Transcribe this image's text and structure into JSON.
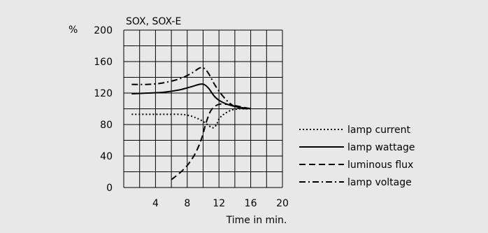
{
  "chart_data": {
    "type": "line",
    "title": "SOX, SOX-E",
    "ylabel": "%",
    "xlabel": "Time in min.",
    "xlim": [
      0,
      20
    ],
    "ylim": [
      0,
      200
    ],
    "x_ticks": [
      4,
      8,
      12,
      16,
      20
    ],
    "y_ticks": [
      0,
      40,
      80,
      120,
      160,
      200
    ],
    "grid": true,
    "legend_position": "right",
    "series": [
      {
        "name": "lamp current",
        "style": "dotted",
        "points": [
          [
            1,
            93
          ],
          [
            3,
            93
          ],
          [
            5,
            93
          ],
          [
            7,
            93
          ],
          [
            8,
            92
          ],
          [
            9,
            89
          ],
          [
            10,
            84
          ],
          [
            10.8,
            78
          ],
          [
            11.3,
            76
          ],
          [
            11.7,
            80
          ],
          [
            12,
            87
          ],
          [
            12.6,
            93
          ],
          [
            13.5,
            98
          ],
          [
            14.5,
            100
          ],
          [
            16,
            100
          ]
        ]
      },
      {
        "name": "lamp wattage",
        "style": "solid",
        "points": [
          [
            1,
            119
          ],
          [
            3,
            120
          ],
          [
            5,
            121
          ],
          [
            7,
            124
          ],
          [
            8.5,
            128
          ],
          [
            9.5,
            131
          ],
          [
            10.1,
            131
          ],
          [
            10.7,
            126
          ],
          [
            11.5,
            115
          ],
          [
            12.5,
            108
          ],
          [
            14,
            103
          ],
          [
            16,
            100
          ]
        ]
      },
      {
        "name": "luminous flux",
        "style": "dashed",
        "points": [
          [
            6,
            10
          ],
          [
            7,
            18
          ],
          [
            8,
            28
          ],
          [
            9,
            43
          ],
          [
            9.8,
            62
          ],
          [
            10.4,
            83
          ],
          [
            11,
            98
          ],
          [
            11.8,
            105
          ],
          [
            12.6,
            106
          ],
          [
            14,
            104
          ],
          [
            16,
            100
          ]
        ]
      },
      {
        "name": "lamp voltage",
        "style": "dashdot",
        "points": [
          [
            1,
            131
          ],
          [
            3,
            131
          ],
          [
            5,
            133
          ],
          [
            7,
            138
          ],
          [
            8.5,
            145
          ],
          [
            9.6,
            152
          ],
          [
            10.2,
            151
          ],
          [
            10.8,
            143
          ],
          [
            11.5,
            130
          ],
          [
            12.5,
            116
          ],
          [
            13.5,
            106
          ],
          [
            14.5,
            101
          ],
          [
            16,
            100
          ]
        ]
      }
    ]
  }
}
